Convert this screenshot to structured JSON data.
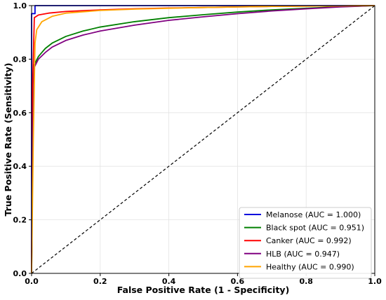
{
  "chart_data": {
    "type": "line",
    "title": "",
    "xlabel": "False Positive Rate (1 - Specificity)",
    "ylabel": "True Positive Rate (Sensitivity)",
    "xlim": [
      0.0,
      1.0
    ],
    "ylim": [
      0.0,
      1.0
    ],
    "x_ticks": [
      "0.0",
      "0.2",
      "0.4",
      "0.6",
      "0.8",
      "1.0"
    ],
    "y_ticks": [
      "0.0",
      "0.2",
      "0.4",
      "0.6",
      "0.8",
      "1.0"
    ],
    "grid": true,
    "legend_position": "bottom-right",
    "series": [
      {
        "name": "Melanose (AUC = 1.000)",
        "color": "#0000dd",
        "points": [
          [
            0,
            0
          ],
          [
            0,
            0.97
          ],
          [
            0.01,
            0.97
          ],
          [
            0.01,
            1.0
          ],
          [
            1.0,
            1.0
          ]
        ]
      },
      {
        "name": "Black spot (AUC = 0.951)",
        "color": "#008000",
        "points": [
          [
            0,
            0
          ],
          [
            0.003,
            0.5
          ],
          [
            0.008,
            0.78
          ],
          [
            0.02,
            0.81
          ],
          [
            0.04,
            0.84
          ],
          [
            0.06,
            0.86
          ],
          [
            0.1,
            0.885
          ],
          [
            0.15,
            0.905
          ],
          [
            0.2,
            0.92
          ],
          [
            0.3,
            0.94
          ],
          [
            0.4,
            0.955
          ],
          [
            0.5,
            0.966
          ],
          [
            0.6,
            0.976
          ],
          [
            0.7,
            0.984
          ],
          [
            0.8,
            0.99
          ],
          [
            0.9,
            0.996
          ],
          [
            1.0,
            1.0
          ]
        ]
      },
      {
        "name": "Canker (AUC = 0.992)",
        "color": "#ff0000",
        "points": [
          [
            0,
            0
          ],
          [
            0.003,
            0.7
          ],
          [
            0.008,
            0.955
          ],
          [
            0.02,
            0.965
          ],
          [
            0.05,
            0.972
          ],
          [
            0.1,
            0.978
          ],
          [
            0.2,
            0.984
          ],
          [
            0.3,
            0.988
          ],
          [
            0.4,
            0.991
          ],
          [
            0.5,
            0.993
          ],
          [
            0.6,
            0.995
          ],
          [
            0.7,
            0.997
          ],
          [
            0.8,
            0.998
          ],
          [
            0.9,
            0.999
          ],
          [
            1.0,
            1.0
          ]
        ]
      },
      {
        "name": "HLB (AUC = 0.947)",
        "color": "#800080",
        "points": [
          [
            0,
            0
          ],
          [
            0.003,
            0.5
          ],
          [
            0.008,
            0.77
          ],
          [
            0.02,
            0.8
          ],
          [
            0.04,
            0.825
          ],
          [
            0.06,
            0.845
          ],
          [
            0.1,
            0.87
          ],
          [
            0.15,
            0.89
          ],
          [
            0.2,
            0.905
          ],
          [
            0.3,
            0.927
          ],
          [
            0.4,
            0.945
          ],
          [
            0.5,
            0.958
          ],
          [
            0.6,
            0.97
          ],
          [
            0.7,
            0.98
          ],
          [
            0.8,
            0.988
          ],
          [
            0.9,
            0.995
          ],
          [
            1.0,
            1.0
          ]
        ]
      },
      {
        "name": "Healthy (AUC = 0.990)",
        "color": "#ffa500",
        "points": [
          [
            0,
            0
          ],
          [
            0.005,
            0.5
          ],
          [
            0.01,
            0.86
          ],
          [
            0.015,
            0.91
          ],
          [
            0.03,
            0.94
          ],
          [
            0.06,
            0.96
          ],
          [
            0.1,
            0.972
          ],
          [
            0.2,
            0.982
          ],
          [
            0.3,
            0.987
          ],
          [
            0.4,
            0.99
          ],
          [
            0.5,
            0.993
          ],
          [
            0.6,
            0.995
          ],
          [
            0.7,
            0.997
          ],
          [
            0.8,
            0.998
          ],
          [
            0.9,
            0.999
          ],
          [
            1.0,
            1.0
          ]
        ]
      }
    ],
    "reference_line": {
      "style": "dashed",
      "color": "#000000",
      "points": [
        [
          0,
          0
        ],
        [
          1,
          1
        ]
      ]
    }
  }
}
